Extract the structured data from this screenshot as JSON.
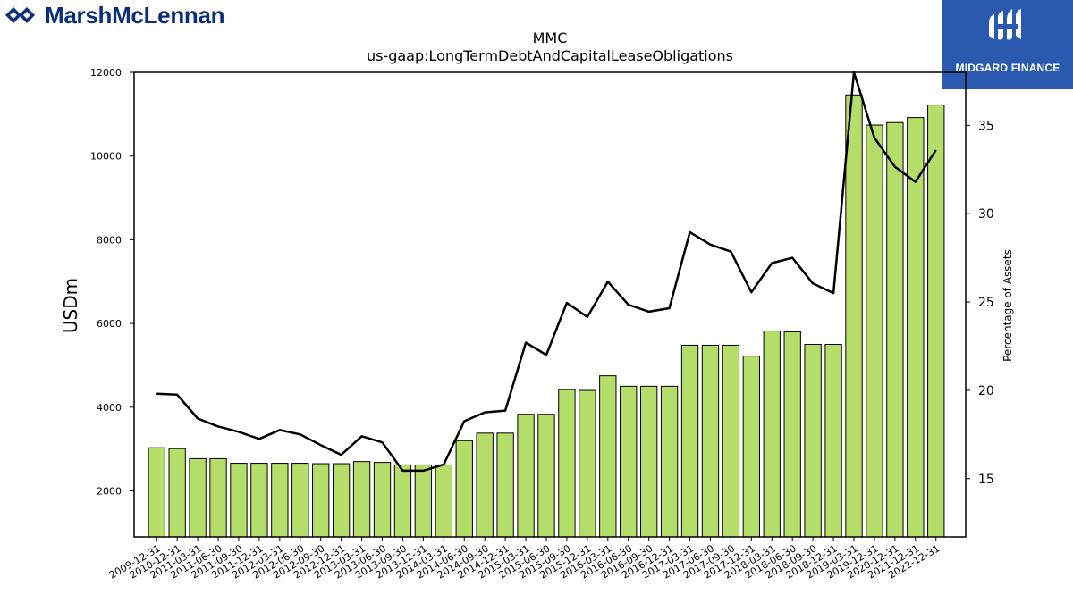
{
  "logos": {
    "left_text": "MarshMcLennan",
    "right_text": "MIDGARD FINANCE"
  },
  "chart_data": {
    "type": "bar",
    "title": "MMC",
    "subtitle": "us-gaap:LongTermDebtAndCapitalLeaseObligations",
    "ylabel": "USDm",
    "y2label": "Percentage of Assets",
    "ylim": [
      900,
      12000
    ],
    "y2lim": [
      11.7,
      38
    ],
    "yticks": [
      2000,
      4000,
      6000,
      8000,
      10000,
      12000
    ],
    "y2ticks": [
      15,
      20,
      25,
      30,
      35
    ],
    "grid": false,
    "bar_color": "#b5dd6a",
    "line_color": "#000000",
    "categories": [
      "2009-12-31",
      "2010-12-31",
      "2011-03-31",
      "2011-06-30",
      "2011-09-30",
      "2011-12-31",
      "2012-03-31",
      "2012-06-30",
      "2012-09-30",
      "2012-12-31",
      "2013-03-31",
      "2013-06-30",
      "2013-09-30",
      "2013-12-31",
      "2014-03-31",
      "2014-06-30",
      "2014-09-30",
      "2014-12-31",
      "2015-03-31",
      "2015-06-30",
      "2015-09-30",
      "2015-12-31",
      "2016-03-31",
      "2016-06-30",
      "2016-09-30",
      "2016-12-31",
      "2017-03-31",
      "2017-06-30",
      "2017-09-30",
      "2017-12-31",
      "2018-03-31",
      "2018-06-30",
      "2018-09-30",
      "2018-12-31",
      "2019-03-31",
      "2019-12-31",
      "2020-12-31",
      "2021-12-31",
      "2022-12-31"
    ],
    "series": [
      {
        "axis": "left",
        "kind": "bar",
        "values": [
          3030,
          3010,
          2770,
          2770,
          2660,
          2660,
          2660,
          2660,
          2650,
          2650,
          2700,
          2680,
          2620,
          2620,
          2620,
          3200,
          3380,
          3380,
          3830,
          3830,
          4420,
          4400,
          4750,
          4500,
          4500,
          4500,
          5480,
          5480,
          5480,
          5220,
          5820,
          5800,
          5500,
          5500,
          11460,
          10740,
          10800,
          10920,
          11220
        ]
      },
      {
        "axis": "right",
        "kind": "line",
        "values": [
          19.8,
          19.75,
          18.4,
          17.95,
          17.65,
          17.25,
          17.75,
          17.5,
          16.9,
          16.35,
          17.4,
          17.05,
          15.45,
          15.45,
          15.8,
          18.25,
          18.75,
          18.85,
          22.7,
          22.0,
          24.95,
          24.15,
          26.15,
          24.85,
          24.45,
          24.65,
          28.95,
          28.25,
          27.85,
          25.55,
          27.2,
          27.5,
          26.05,
          25.5,
          38.0,
          34.3,
          32.65,
          31.8,
          33.6
        ]
      }
    ]
  }
}
